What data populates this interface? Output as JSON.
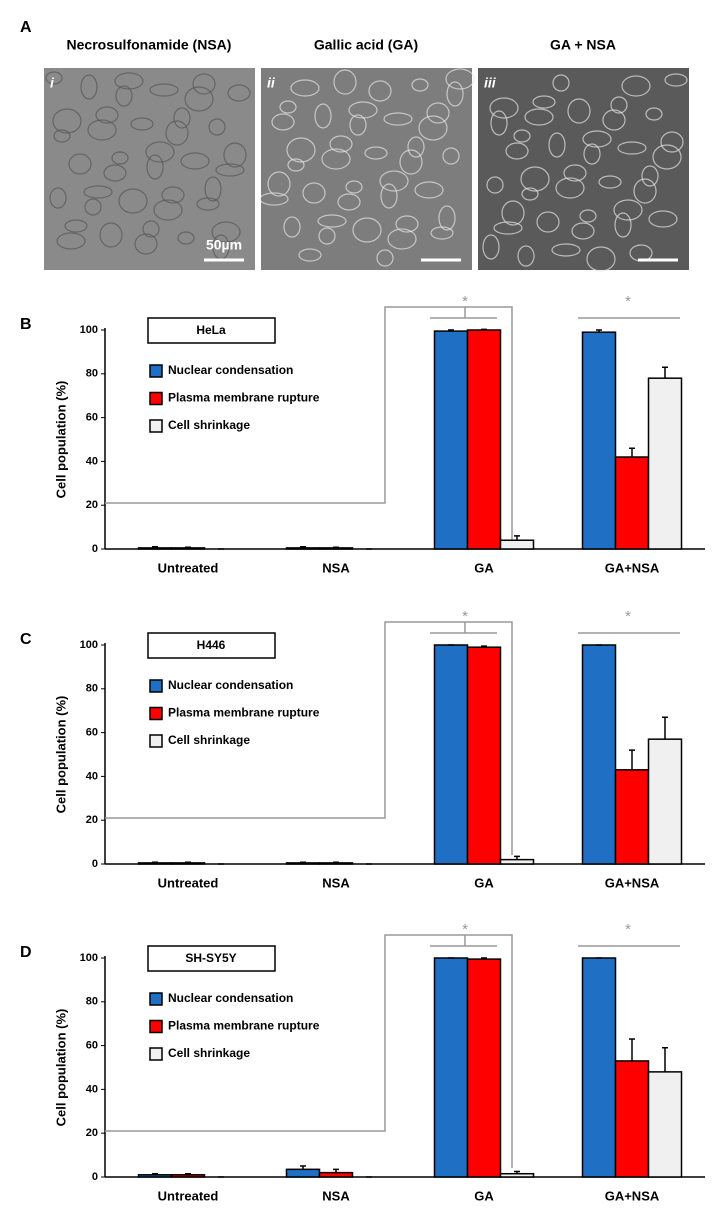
{
  "panel_a": {
    "letter": "A",
    "images": [
      {
        "title": "Necrosulfonamide (NSA)",
        "numeral": "i"
      },
      {
        "title": "Gallic acid (GA)",
        "numeral": "ii"
      },
      {
        "title": "GA + NSA",
        "numeral": "iii"
      }
    ],
    "scale_bar": "50µm"
  },
  "chart_data": [
    {
      "type": "bar",
      "panel": "B",
      "label": "HeLa",
      "y_label": "Cell population (%)",
      "categories": [
        "Untreated",
        "NSA",
        "GA",
        "GA+NSA"
      ],
      "significance": "*",
      "ylim": [
        0,
        100
      ],
      "yticks": [
        0,
        20,
        40,
        60,
        80,
        100
      ],
      "series": [
        {
          "name": "Nuclear condensation",
          "color": "#1f6fc4",
          "values": [
            0.5,
            0.5,
            99.5,
            99
          ],
          "errors": [
            0.5,
            0.5,
            0.5,
            1
          ]
        },
        {
          "name": "Plasma membrane rupture",
          "color": "#ff0000",
          "values": [
            0.5,
            0.5,
            100,
            42
          ],
          "errors": [
            0.3,
            0.3,
            0.3,
            4
          ]
        },
        {
          "name": "Cell shrinkage",
          "color": "#f0f0f0",
          "values": [
            0,
            0,
            4,
            78
          ],
          "errors": [
            0,
            0,
            2,
            5
          ]
        }
      ]
    },
    {
      "type": "bar",
      "panel": "C",
      "label": "H446",
      "y_label": "Cell population (%)",
      "categories": [
        "Untreated",
        "NSA",
        "GA",
        "GA+NSA"
      ],
      "significance": "*",
      "ylim": [
        0,
        100
      ],
      "yticks": [
        0,
        20,
        40,
        60,
        80,
        100
      ],
      "series": [
        {
          "name": "Nuclear condensation",
          "color": "#1f6fc4",
          "values": [
            0.5,
            0.5,
            100,
            100
          ],
          "errors": [
            0.3,
            0.3,
            0,
            0
          ]
        },
        {
          "name": "Plasma membrane rupture",
          "color": "#ff0000",
          "values": [
            0.5,
            0.5,
            99,
            43
          ],
          "errors": [
            0.3,
            0.3,
            0.5,
            9
          ]
        },
        {
          "name": "Cell shrinkage",
          "color": "#f0f0f0",
          "values": [
            0,
            0,
            2,
            57
          ],
          "errors": [
            0,
            0,
            1.5,
            10
          ]
        }
      ]
    },
    {
      "type": "bar",
      "panel": "D",
      "label": "SH-SY5Y",
      "y_label": "Cell population (%)",
      "categories": [
        "Untreated",
        "NSA",
        "GA",
        "GA+NSA"
      ],
      "significance": "*",
      "ylim": [
        0,
        100
      ],
      "yticks": [
        0,
        20,
        40,
        60,
        80,
        100
      ],
      "series": [
        {
          "name": "Nuclear condensation",
          "color": "#1f6fc4",
          "values": [
            1,
            3.5,
            100,
            100
          ],
          "errors": [
            0.5,
            1.5,
            0,
            0
          ]
        },
        {
          "name": "Plasma membrane rupture",
          "color": "#ff0000",
          "values": [
            1,
            2,
            99.5,
            53
          ],
          "errors": [
            0.5,
            1.5,
            0.5,
            10
          ]
        },
        {
          "name": "Cell shrinkage",
          "color": "#f0f0f0",
          "values": [
            0,
            0,
            1.5,
            48
          ],
          "errors": [
            0,
            0,
            1,
            11
          ]
        }
      ]
    }
  ]
}
